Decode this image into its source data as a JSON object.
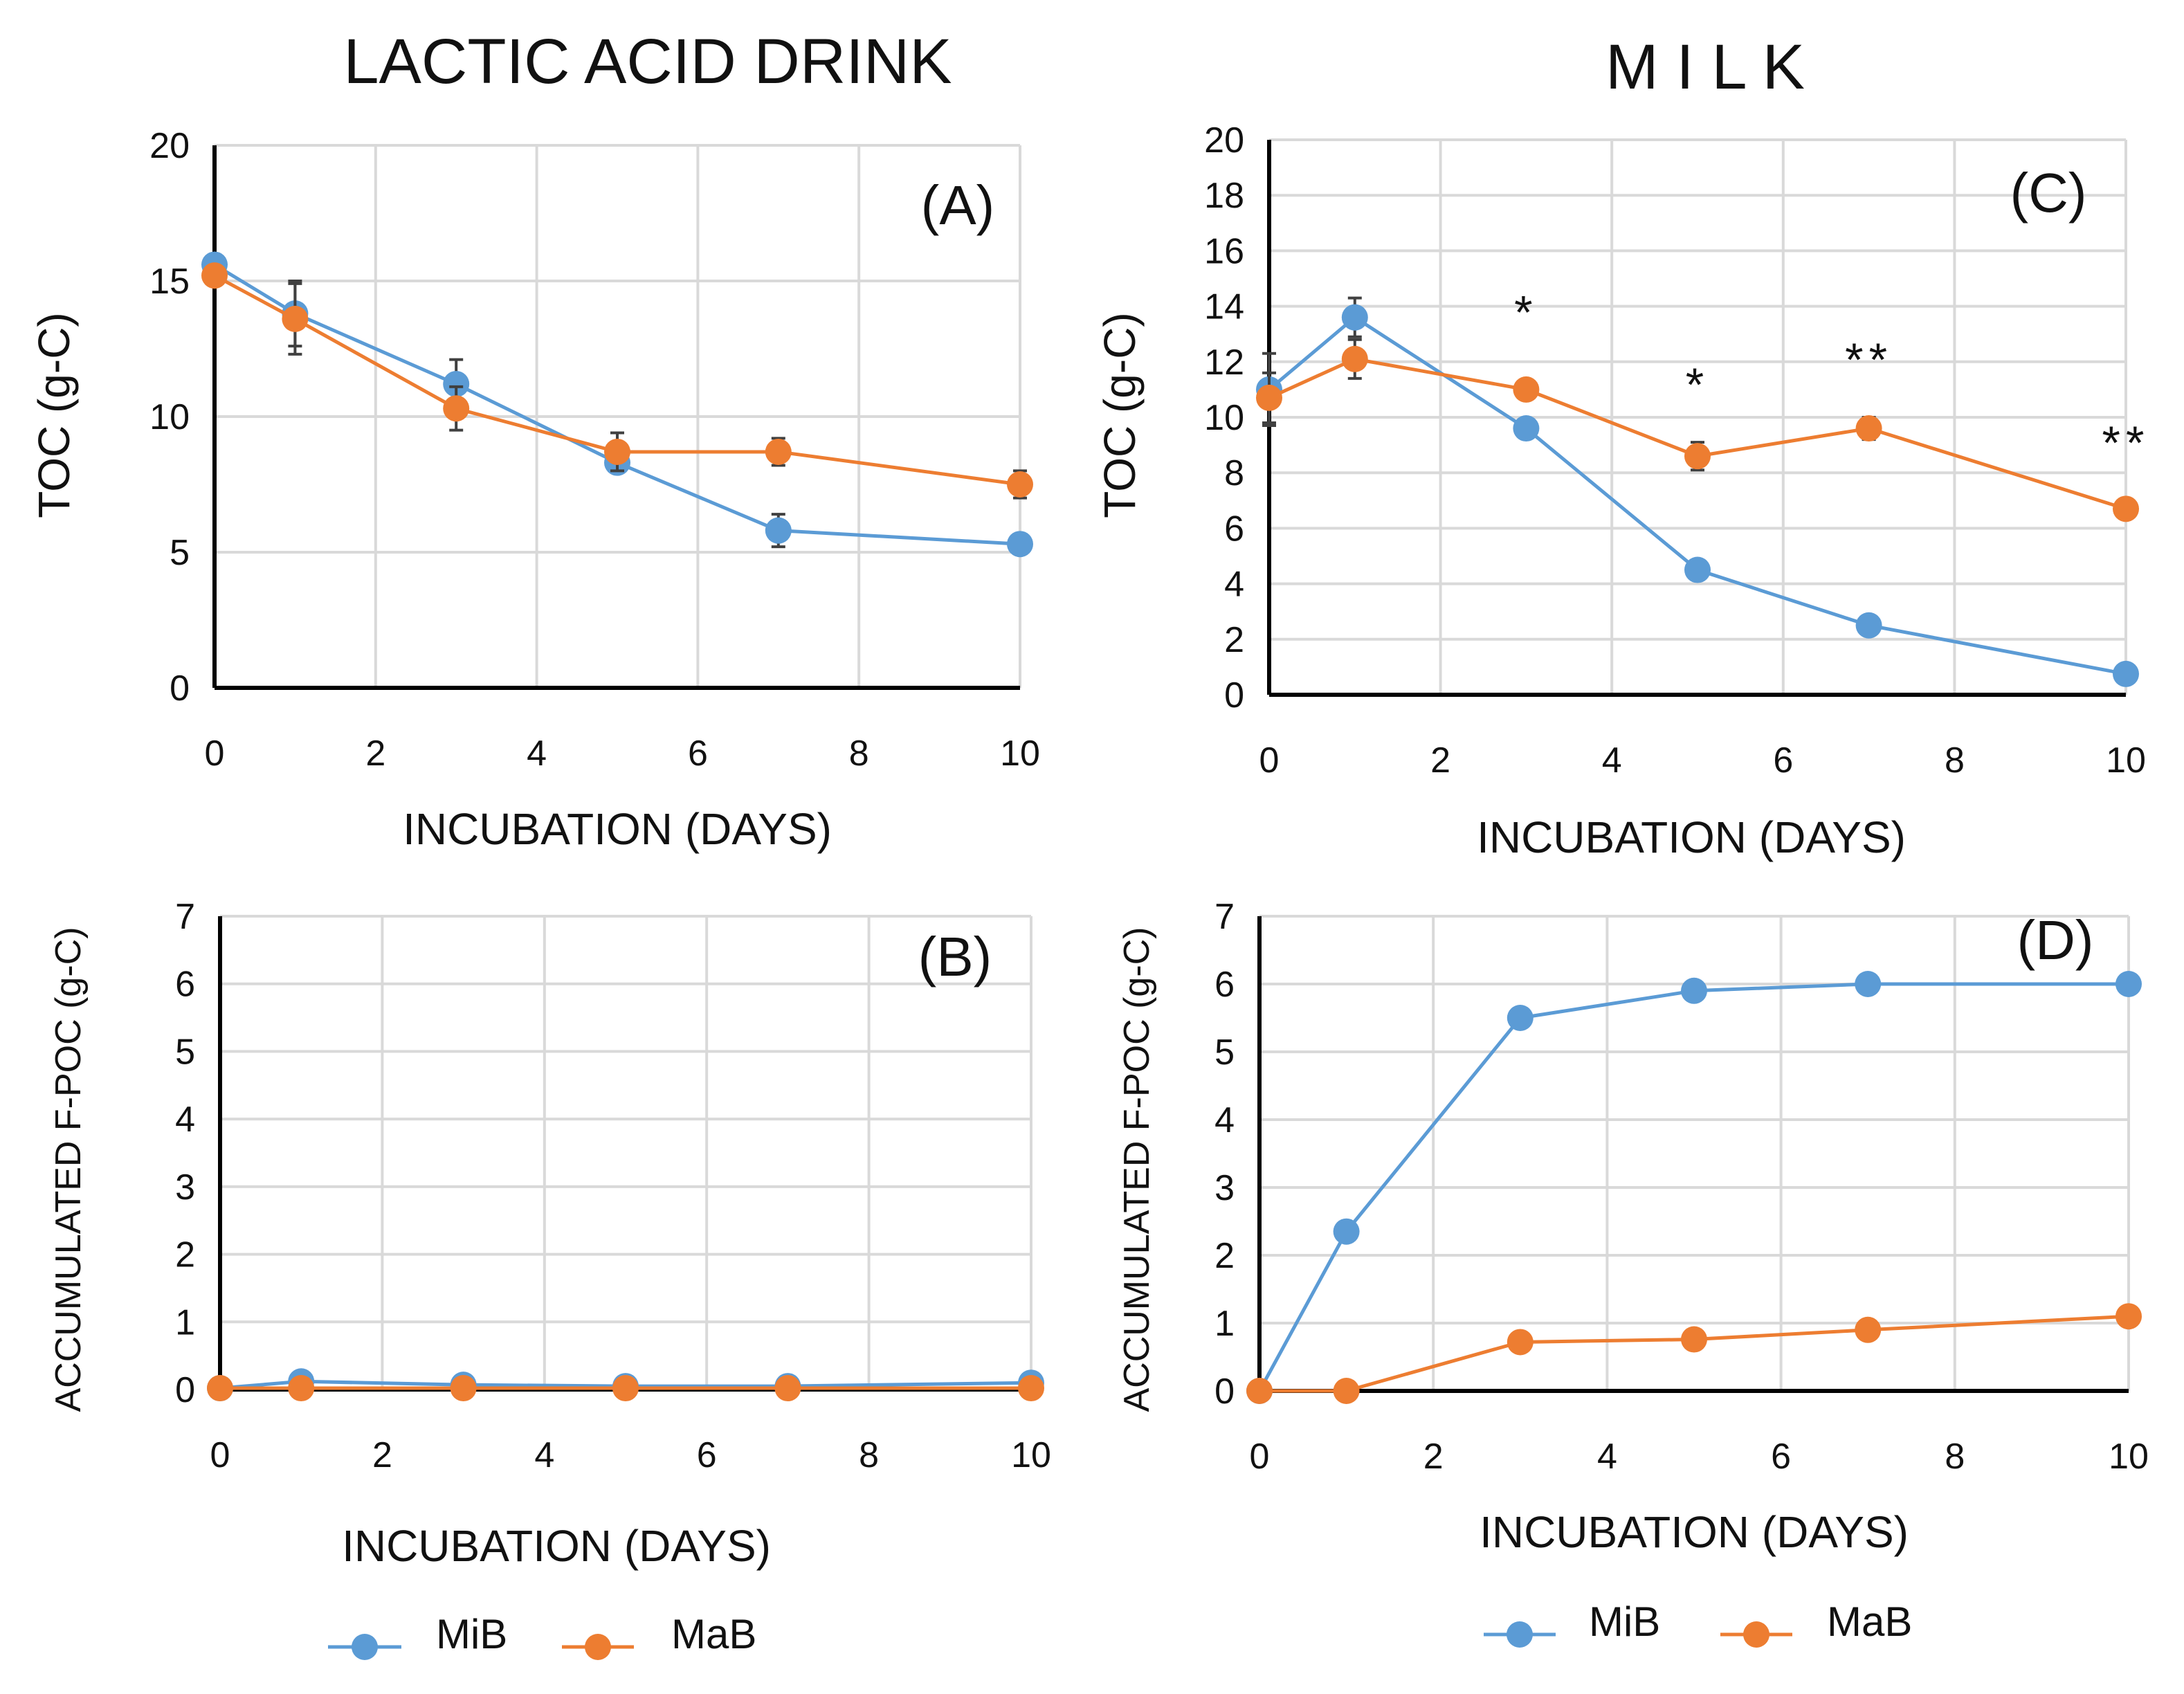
{
  "colors": {
    "MiB": "#5B9BD5",
    "MaB": "#ED7D31",
    "error_bar": "#404040",
    "grid": "#D9D9D9"
  },
  "column_titles": {
    "left": "LACTIC ACID DRINK",
    "right": "M I L K"
  },
  "legend": {
    "items": [
      "MiB",
      "MaB"
    ]
  },
  "chart_data": [
    {
      "id": "A",
      "type": "line",
      "panel_label": "(A)",
      "xlabel": "INCUBATION (DAYS)",
      "ylabel": "TOC (g-C)",
      "xlim": [
        0,
        10
      ],
      "ylim": [
        0,
        20
      ],
      "xticks": [
        "0",
        "2",
        "4",
        "6",
        "8",
        "10"
      ],
      "yticks": [
        "0",
        "5",
        "10",
        "15",
        "20"
      ],
      "x": [
        0,
        1,
        3,
        5,
        7,
        10
      ],
      "series": [
        {
          "name": "MiB",
          "values": [
            15.6,
            13.8,
            11.2,
            8.3,
            5.8,
            5.3
          ],
          "errors": [
            0,
            1.2,
            0.9,
            0,
            0.6,
            0
          ]
        },
        {
          "name": "MaB",
          "values": [
            15.2,
            13.6,
            10.3,
            8.7,
            8.7,
            7.5
          ],
          "errors": [
            0,
            1.3,
            0.8,
            0.7,
            0.5,
            0.5
          ]
        }
      ],
      "annotations": []
    },
    {
      "id": "B",
      "type": "line",
      "panel_label": "(B)",
      "xlabel": "INCUBATION (DAYS)",
      "ylabel": "ACCUMULATED F-POC (g-C)",
      "xlim": [
        0,
        10
      ],
      "ylim": [
        0,
        7
      ],
      "xticks": [
        "0",
        "2",
        "4",
        "6",
        "8",
        "10"
      ],
      "yticks": [
        "0",
        "1",
        "2",
        "3",
        "4",
        "5",
        "6",
        "7"
      ],
      "x": [
        0,
        1,
        3,
        5,
        7,
        10
      ],
      "series": [
        {
          "name": "MiB",
          "values": [
            0.02,
            0.12,
            0.07,
            0.05,
            0.05,
            0.1
          ],
          "errors": [
            0,
            0,
            0,
            0,
            0,
            0
          ]
        },
        {
          "name": "MaB",
          "values": [
            0.02,
            0.02,
            0.02,
            0.02,
            0.02,
            0.02
          ],
          "errors": [
            0,
            0,
            0,
            0,
            0,
            0
          ]
        }
      ],
      "annotations": []
    },
    {
      "id": "C",
      "type": "line",
      "panel_label": "(C)",
      "xlabel": "INCUBATION (DAYS)",
      "ylabel": "TOC (g-C)",
      "xlim": [
        0,
        10
      ],
      "ylim": [
        0,
        20
      ],
      "xticks": [
        "0",
        "2",
        "4",
        "6",
        "8",
        "10"
      ],
      "yticks": [
        "0",
        "2",
        "4",
        "6",
        "8",
        "10",
        "12",
        "14",
        "16",
        "18",
        "20"
      ],
      "x": [
        0,
        1,
        3,
        5,
        7,
        10
      ],
      "series": [
        {
          "name": "MiB",
          "values": [
            11.0,
            13.6,
            9.6,
            4.5,
            2.5,
            0.75
          ],
          "errors": [
            1.3,
            0.7,
            0,
            0,
            0,
            0
          ]
        },
        {
          "name": "MaB",
          "values": [
            10.7,
            12.1,
            11.0,
            8.6,
            9.6,
            6.7
          ],
          "errors": [
            0.9,
            0.7,
            0,
            0.5,
            0.4,
            0.3
          ]
        }
      ],
      "annotations": [
        {
          "x": 3,
          "y": 13.2,
          "text": "*"
        },
        {
          "x": 5,
          "y": 10.6,
          "text": "*"
        },
        {
          "x": 7,
          "y": 11.5,
          "text": "**"
        },
        {
          "x": 10,
          "y": 8.5,
          "text": "**"
        }
      ]
    },
    {
      "id": "D",
      "type": "line",
      "panel_label": "(D)",
      "xlabel": "INCUBATION (DAYS)",
      "ylabel": "ACCUMULATED F-POC (g-C)",
      "xlim": [
        0,
        10
      ],
      "ylim": [
        0,
        7
      ],
      "xticks": [
        "0",
        "2",
        "4",
        "6",
        "8",
        "10"
      ],
      "yticks": [
        "0",
        "1",
        "2",
        "3",
        "4",
        "5",
        "6",
        "7"
      ],
      "x": [
        0,
        1,
        3,
        5,
        7,
        10
      ],
      "series": [
        {
          "name": "MiB",
          "values": [
            0,
            2.35,
            5.5,
            5.9,
            6.0,
            6.0
          ],
          "errors": [
            0,
            0,
            0,
            0,
            0,
            0
          ]
        },
        {
          "name": "MaB",
          "values": [
            0,
            0,
            0.72,
            0.76,
            0.9,
            1.1
          ],
          "errors": [
            0,
            0,
            0,
            0,
            0,
            0
          ]
        }
      ],
      "annotations": []
    }
  ]
}
